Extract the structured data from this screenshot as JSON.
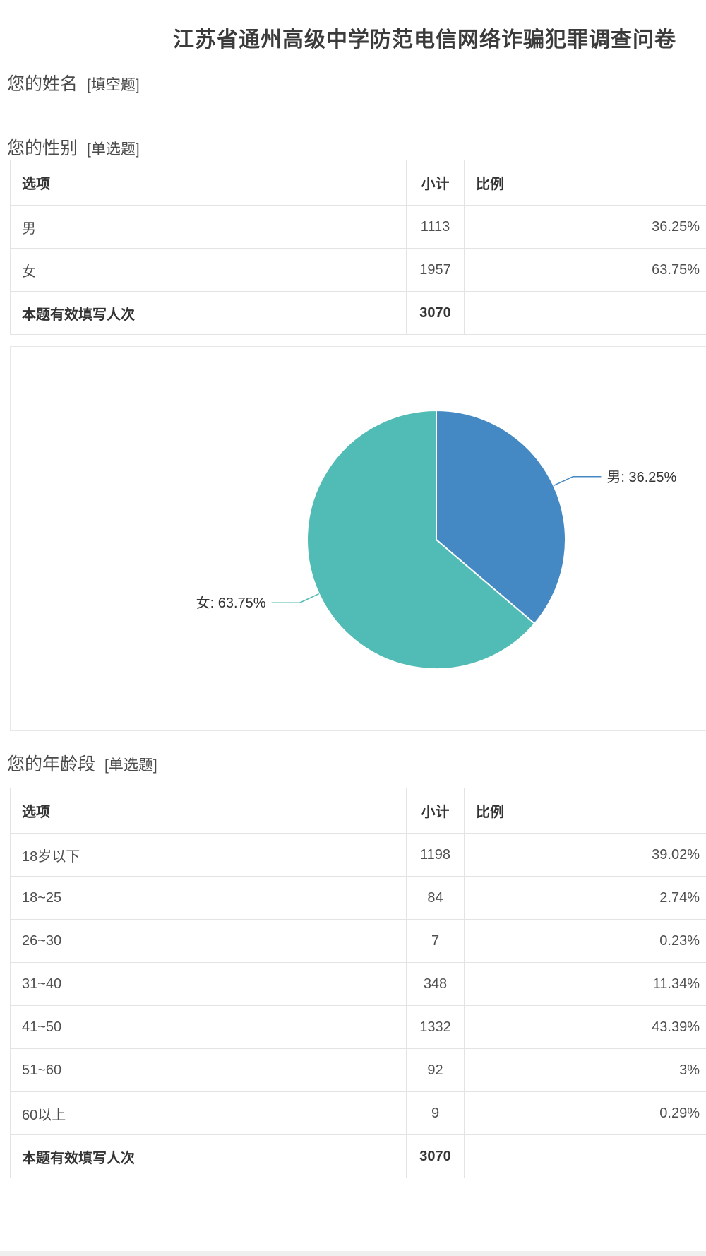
{
  "page": {
    "title": "江苏省通州高级中学防范电信网络诈骗犯罪调查问卷"
  },
  "questions": {
    "name": {
      "title": "您的姓名",
      "tag": "[填空题]"
    },
    "gender": {
      "title": "您的性别",
      "tag": "[单选题]",
      "table": {
        "headers": [
          "选项",
          "小计",
          "比例"
        ],
        "rows": [
          [
            "男",
            "1113",
            "36.25%"
          ],
          [
            "女",
            "1957",
            "63.75%"
          ]
        ],
        "total_row": [
          "本题有效填写人次",
          "3070",
          ""
        ]
      }
    },
    "age": {
      "title": "您的年龄段",
      "tag": "[单选题]",
      "table": {
        "headers": [
          "选项",
          "小计",
          "比例"
        ],
        "rows": [
          [
            "18岁以下",
            "1198",
            "39.02%"
          ],
          [
            "18~25",
            "84",
            "2.74%"
          ],
          [
            "26~30",
            "7",
            "0.23%"
          ],
          [
            "31~40",
            "348",
            "11.34%"
          ],
          [
            "41~50",
            "1332",
            "43.39%"
          ],
          [
            "51~60",
            "92",
            "3%"
          ],
          [
            "60以上",
            "9",
            "0.29%"
          ]
        ],
        "total_row": [
          "本题有效填写人次",
          "3070",
          ""
        ]
      }
    }
  },
  "chart_data": {
    "type": "pie",
    "question": "您的性别",
    "points": [
      {
        "name": "男",
        "value": 1113,
        "pct": "36.25%",
        "color": "#4589c4"
      },
      {
        "name": "女",
        "value": 1957,
        "pct": "63.75%",
        "color": "#51bcb6"
      }
    ],
    "label_format": "name: pct",
    "label_color": "#333333",
    "slice_border_color": "#ffffff",
    "legend": false,
    "start_angle_deg_from_north": 0,
    "direction": "clockwise"
  }
}
